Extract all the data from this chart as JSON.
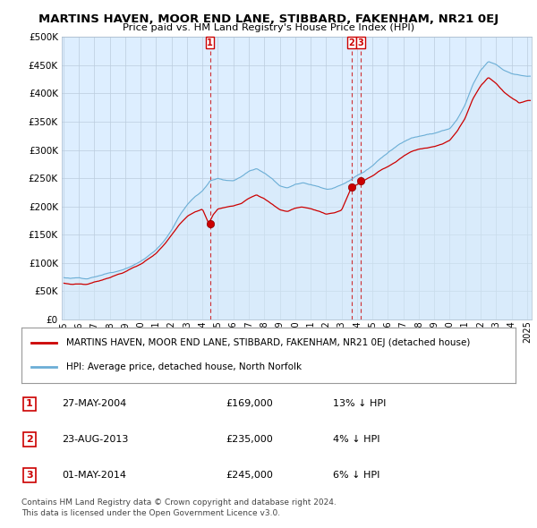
{
  "title": "MARTINS HAVEN, MOOR END LANE, STIBBARD, FAKENHAM, NR21 0EJ",
  "subtitle": "Price paid vs. HM Land Registry's House Price Index (HPI)",
  "ylim": [
    0,
    500000
  ],
  "ytick_vals": [
    0,
    50000,
    100000,
    150000,
    200000,
    250000,
    300000,
    350000,
    400000,
    450000,
    500000
  ],
  "hpi_color": "#6baed6",
  "hpi_fill_color": "#d6eaf8",
  "price_color": "#cc0000",
  "legend_line1": "MARTINS HAVEN, MOOR END LANE, STIBBARD, FAKENHAM, NR21 0EJ (detached house)",
  "legend_line2": "HPI: Average price, detached house, North Norfolk",
  "sales": [
    {
      "num": 1,
      "date": "27-MAY-2004",
      "price": 169000,
      "hpi_rel": "13% ↓ HPI"
    },
    {
      "num": 2,
      "date": "23-AUG-2013",
      "price": 235000,
      "hpi_rel": "4% ↓ HPI"
    },
    {
      "num": 3,
      "date": "01-MAY-2014",
      "price": 245000,
      "hpi_rel": "6% ↓ HPI"
    }
  ],
  "footnote1": "Contains HM Land Registry data © Crown copyright and database right 2024.",
  "footnote2": "This data is licensed under the Open Government Licence v3.0.",
  "background_color": "#ffffff",
  "plot_bg_color": "#ddeeff",
  "grid_color": "#bbccdd"
}
